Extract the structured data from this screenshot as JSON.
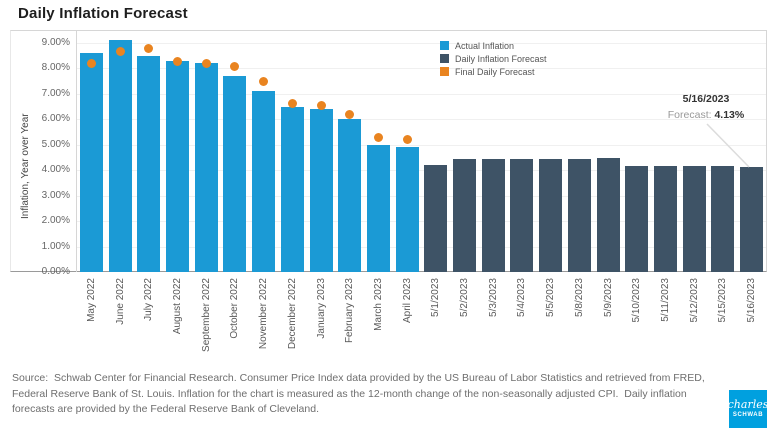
{
  "title": "Daily Inflation Forecast",
  "colors": {
    "actual": "#1B9AD5",
    "forecast": "#3E5366",
    "final": "#E98420",
    "logo_bg": "#00A0DF",
    "connector": "#dcdcdc"
  },
  "y_axis": {
    "label": "Inflation, Year over Year"
  },
  "legend": {
    "items": [
      {
        "label": "Actual Inflation",
        "color": "#1B9AD5"
      },
      {
        "label": "Daily Inflation Forecast",
        "color": "#3E5366"
      },
      {
        "label": "Final Daily Forecast",
        "color": "#E98420"
      }
    ]
  },
  "annotation": {
    "date": "5/16/2023",
    "prefix": "Forecast: ",
    "value": "4.13%"
  },
  "footer": {
    "source": "Source:  Schwab Center for Financial Research. Consumer Price Index data provided by the US Bureau of Labor Statistics and retrieved from FRED, Federal Reserve Bank of St. Louis. Inflation for the chart is measured as the 12-month change of the non-seasonally adjusted CPI.  Daily inflation forecasts are provided by the Federal Reserve Bank of Cleveland."
  },
  "logo": {
    "top": "charles",
    "bottom": "SCHWAB"
  },
  "chart_data": {
    "type": "bar",
    "title": "Daily Inflation Forecast",
    "xlabel": "",
    "ylabel": "Inflation, Year over Year",
    "ylim": [
      0,
      9.5
    ],
    "yticks": [
      "0.00%",
      "1.00%",
      "2.00%",
      "3.00%",
      "4.00%",
      "5.00%",
      "6.00%",
      "7.00%",
      "8.00%",
      "9.00%"
    ],
    "grid": true,
    "legend_position": "top-center",
    "categories": [
      "May 2022",
      "June 2022",
      "July 2022",
      "August 2022",
      "September 2022",
      "October 2022",
      "November 2022",
      "December 2022",
      "January 2023",
      "February 2023",
      "March 2023",
      "April 2023",
      "5/1/2023",
      "5/2/2023",
      "5/3/2023",
      "5/4/2023",
      "5/5/2023",
      "5/8/2023",
      "5/9/2023",
      "5/10/2023",
      "5/11/2023",
      "5/12/2023",
      "5/15/2023",
      "5/16/2023"
    ],
    "series": [
      {
        "name": "Actual Inflation",
        "type": "bar",
        "categories": [
          "May 2022",
          "June 2022",
          "July 2022",
          "August 2022",
          "September 2022",
          "October 2022",
          "November 2022",
          "December 2022",
          "January 2023",
          "February 2023",
          "March 2023",
          "April 2023"
        ],
        "values": [
          8.6,
          9.1,
          8.5,
          8.3,
          8.2,
          7.7,
          7.1,
          6.5,
          6.4,
          6.0,
          5.0,
          4.9
        ]
      },
      {
        "name": "Daily Inflation Forecast",
        "type": "bar",
        "categories": [
          "5/1/2023",
          "5/2/2023",
          "5/3/2023",
          "5/4/2023",
          "5/5/2023",
          "5/8/2023",
          "5/9/2023",
          "5/10/2023",
          "5/11/2023",
          "5/12/2023",
          "5/15/2023",
          "5/16/2023"
        ],
        "values": [
          4.2,
          4.45,
          4.45,
          4.45,
          4.45,
          4.45,
          4.47,
          4.17,
          4.17,
          4.17,
          4.16,
          4.13
        ]
      },
      {
        "name": "Final Daily Forecast",
        "type": "scatter",
        "categories": [
          "May 2022",
          "June 2022",
          "July 2022",
          "August 2022",
          "September 2022",
          "October 2022",
          "November 2022",
          "December 2022",
          "January 2023",
          "February 2023",
          "March 2023",
          "April 2023"
        ],
        "values": [
          8.2,
          8.65,
          8.8,
          8.27,
          8.21,
          8.06,
          7.5,
          6.64,
          6.55,
          6.2,
          5.27,
          5.19
        ]
      }
    ],
    "annotation": {
      "text": "5/16/2023 Forecast: 4.13%",
      "target_category": "5/16/2023",
      "target_value": 4.13
    }
  }
}
